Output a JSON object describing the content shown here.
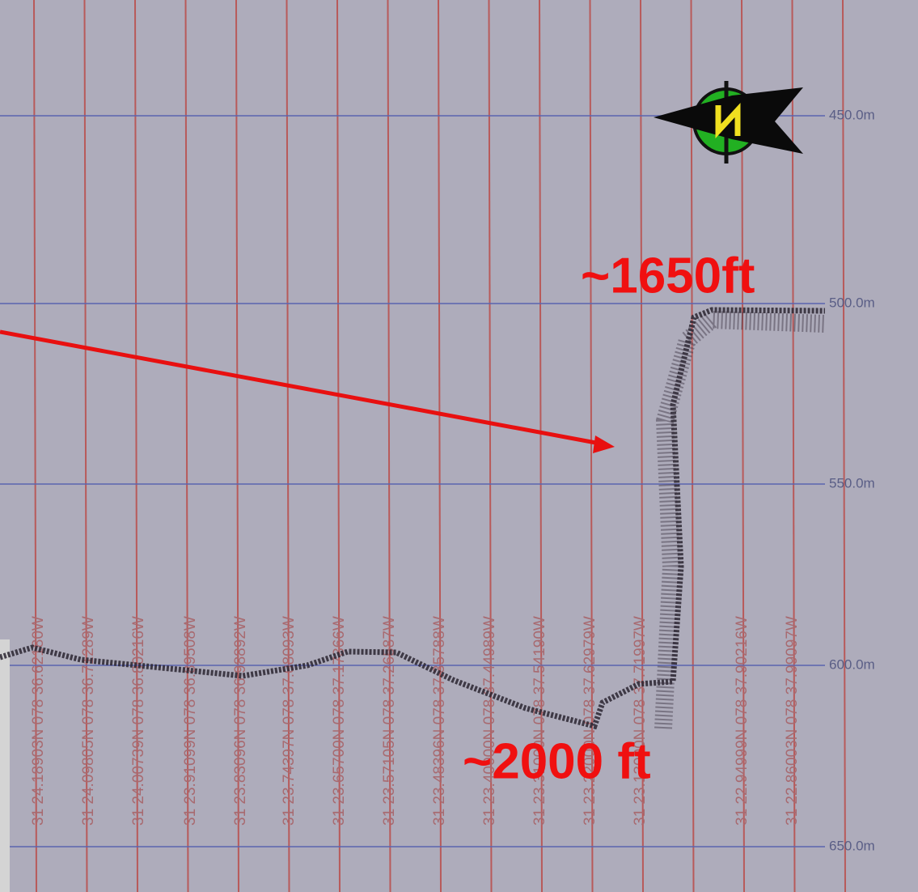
{
  "depth_labels": [
    "450.0m",
    "500.0m",
    "550.0m",
    "600.0m",
    "650.0m"
  ],
  "track_labels": [
    "31 24.18903N 078 36.62180W",
    "31 24.09805N 078 36.71289W",
    "31 24.00739N 078 36.80216W",
    "31 23.91099N 078 36.89508W",
    "31 23.83096N 078 36.98892W",
    "31 23.74397N 078 37.08093W",
    "31 23.65700N 078 37.17366W",
    "31 23.57105N 078 37.26587W",
    "31 23.48396N 078 37.35788W",
    "31 23.40000N 078 37.44989W",
    "31 23.31000N 078 37.54190W",
    "31 23.22000N 078 37.62979W",
    "31 23.13000N 078 37.71997W",
    "31 22.94999N 078 37.90216W",
    "31 22.86003N 078 37.99097W"
  ],
  "annotations": {
    "shelf_depth": "~1650ft",
    "floor_depth": "~2000 ft"
  }
}
